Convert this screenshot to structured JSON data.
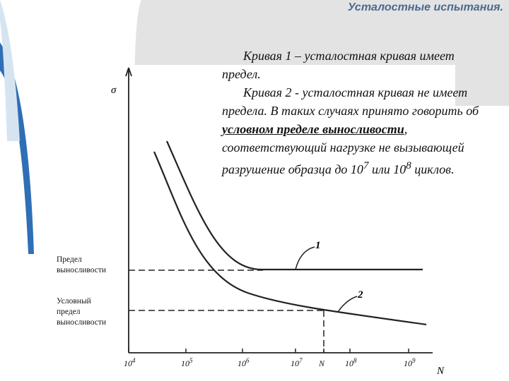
{
  "header": {
    "title": "Усталостные испытания."
  },
  "text": {
    "paragraph1": "Кривая 1 – усталостная кривая имеет предел.",
    "paragraph2": [
      "Кривая 2 - усталостная кривая не имеет предела. В таких случаях принято говорить об ",
      "условном пределе выносливости",
      ", соответствующий нагрузке не вызывающей разрушение образца до 10",
      "7",
      " или 10",
      "8",
      " циклов."
    ]
  },
  "diagram": {
    "y_axis_label": "σ",
    "x_axis_label": "N",
    "x_ticks": [
      {
        "base": "10",
        "exp": "4"
      },
      {
        "base": "10",
        "exp": "5"
      },
      {
        "base": "10",
        "exp": "6"
      },
      {
        "base": "10",
        "exp": "7"
      },
      {
        "base": "N",
        "exp": ""
      },
      {
        "base": "10",
        "exp": "8"
      },
      {
        "base": "10",
        "exp": "9"
      }
    ],
    "level_labels": [
      "Предел выносливости",
      "Условный предел выносливости"
    ],
    "curve_labels": [
      "1",
      "2"
    ]
  }
}
